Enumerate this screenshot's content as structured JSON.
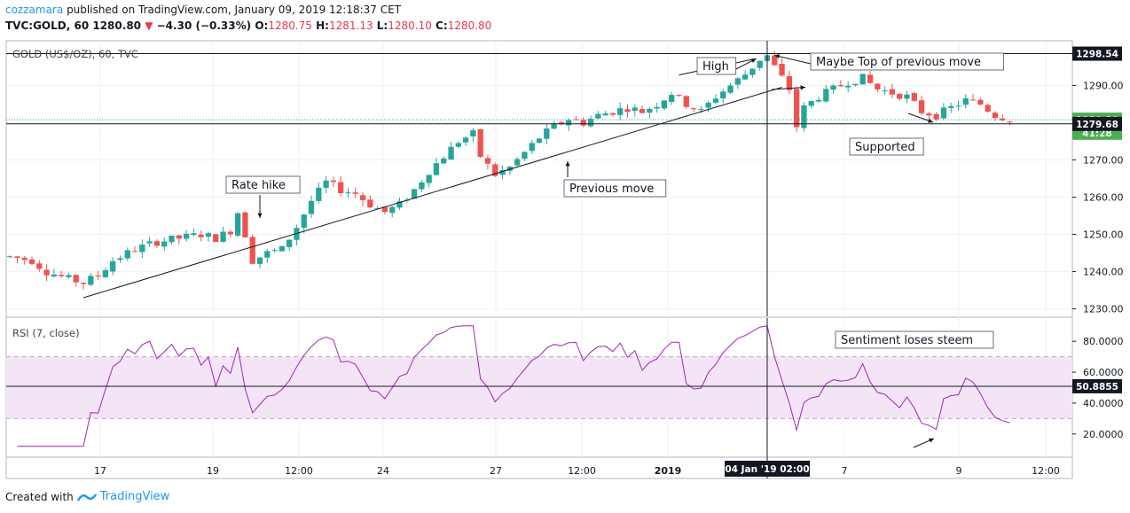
{
  "header": {
    "author": "cozzamara",
    "published_text": "published on TradingView.com, January 09, 2019 12:18:37 CET",
    "symbol": "TVC:GOLD, 60",
    "last": "1280.80",
    "change": "−4.30 (−0.33%)",
    "o_label": "O:",
    "o_value": "1280.75",
    "h_label": "H:",
    "h_value": "1281.13",
    "l_label": "L:",
    "l_value": "1280.10",
    "c_label": "C:",
    "c_value": "1280.80"
  },
  "footer": {
    "created_with": "Created with",
    "brand": "TradingView"
  },
  "colors": {
    "up": "#26a69a",
    "down": "#ef5350",
    "rsi": "#9c27b0",
    "rsi_band": "#f3e5f5",
    "accent": "#131722"
  },
  "chart_data": [
    {
      "type": "candlestick",
      "title": "GOLD (US$/OZ), 60, TVC",
      "ylim": [
        1228,
        1302
      ],
      "yticks": [
        1230,
        1240,
        1250,
        1260,
        1270,
        1290
      ],
      "ytick_labels": [
        "1230.00",
        "1240.00",
        "1250.00",
        "1260.00",
        "1270.00",
        "1290.00"
      ],
      "price_tags": [
        {
          "label": "1298.54",
          "value": 1298.54,
          "style": "dark"
        },
        {
          "label": "1280.80",
          "value": 1280.8,
          "style": "green"
        },
        {
          "label": "41:28",
          "value": 1277.3,
          "style": "green"
        },
        {
          "label": "1279.68",
          "value": 1279.68,
          "style": "dark"
        }
      ],
      "x_ticks": [
        "17",
        "19",
        "12:00",
        "24",
        "27",
        "12:00",
        "2019",
        "7",
        "9",
        "12:00"
      ],
      "x_crosshair_label": "04 Jan '19   02:00",
      "price_path": [
        [
          0,
          1244
        ],
        [
          3,
          1243
        ],
        [
          5,
          1240
        ],
        [
          8,
          1238
        ],
        [
          10,
          1237
        ],
        [
          12,
          1239
        ],
        [
          14,
          1243
        ],
        [
          17,
          1246
        ],
        [
          20,
          1248
        ],
        [
          23,
          1249
        ],
        [
          26,
          1250
        ],
        [
          28,
          1249
        ],
        [
          30,
          1251
        ],
        [
          31,
          1256
        ],
        [
          32,
          1250
        ],
        [
          33,
          1243
        ],
        [
          35,
          1245
        ],
        [
          37,
          1246
        ],
        [
          39,
          1252
        ],
        [
          41,
          1259
        ],
        [
          43,
          1264
        ],
        [
          45,
          1262
        ],
        [
          47,
          1261
        ],
        [
          49,
          1258
        ],
        [
          51,
          1256
        ],
        [
          53,
          1258
        ],
        [
          55,
          1262
        ],
        [
          57,
          1267
        ],
        [
          59,
          1271
        ],
        [
          61,
          1275
        ],
        [
          63,
          1277
        ],
        [
          64,
          1271
        ],
        [
          66,
          1266
        ],
        [
          68,
          1268
        ],
        [
          70,
          1272
        ],
        [
          72,
          1276
        ],
        [
          74,
          1279
        ],
        [
          76,
          1281
        ],
        [
          78,
          1280
        ],
        [
          80,
          1282
        ],
        [
          82,
          1283
        ],
        [
          84,
          1284
        ],
        [
          86,
          1283
        ],
        [
          88,
          1285
        ],
        [
          90,
          1288
        ],
        [
          92,
          1285
        ],
        [
          94,
          1283
        ],
        [
          96,
          1287
        ],
        [
          98,
          1290
        ],
        [
          100,
          1293
        ],
        [
          102,
          1297
        ],
        [
          103,
          1298
        ],
        [
          104,
          1295
        ],
        [
          105,
          1292
        ],
        [
          106,
          1289
        ],
        [
          107,
          1279
        ],
        [
          108,
          1284
        ],
        [
          110,
          1287
        ],
        [
          112,
          1289
        ],
        [
          114,
          1291
        ],
        [
          116,
          1292
        ],
        [
          118,
          1289
        ],
        [
          120,
          1288
        ],
        [
          122,
          1287
        ],
        [
          124,
          1283
        ],
        [
          126,
          1282
        ],
        [
          128,
          1284
        ],
        [
          130,
          1286
        ],
        [
          132,
          1285
        ],
        [
          134,
          1282
        ],
        [
          136,
          1281
        ]
      ],
      "annotations": [
        {
          "text": "High",
          "price": 1294,
          "bar": 91
        },
        {
          "text": "Maybe Top of previous move",
          "price": 1294,
          "bar": 117
        },
        {
          "text": "Rate hike",
          "price": 1262,
          "bar": 30
        },
        {
          "text": "Previous move",
          "price": 1262,
          "bar": 78
        },
        {
          "text": "Supported",
          "price": 1274,
          "bar": 112
        }
      ]
    },
    {
      "type": "line",
      "title": "RSI (7, close)",
      "ylim": [
        5,
        95
      ],
      "yticks": [
        20,
        40,
        60,
        80
      ],
      "ytick_labels": [
        "20.0000",
        "40.0000",
        "60.0000",
        "80.0000"
      ],
      "bands": {
        "upper": 70,
        "lower": 30
      },
      "current": {
        "label": "50.8855",
        "value": 50.8855
      },
      "annotation": "Sentiment loses steem"
    }
  ]
}
